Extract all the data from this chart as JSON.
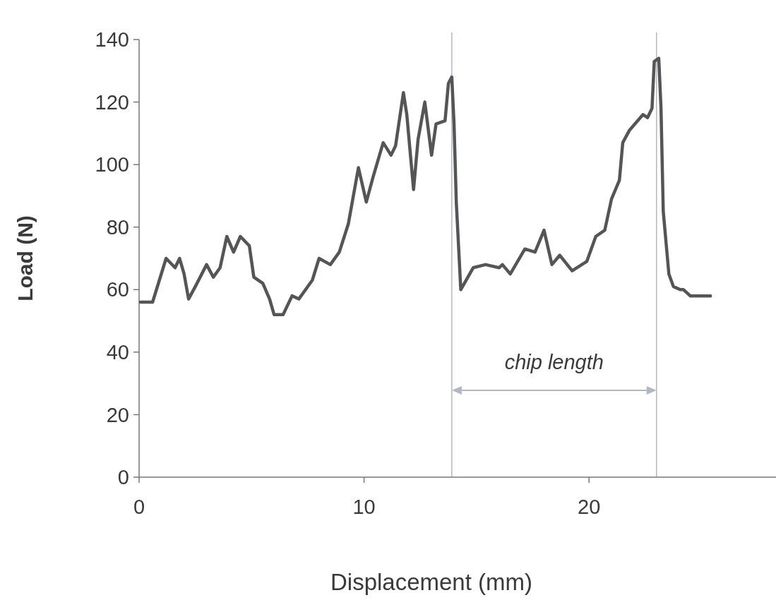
{
  "chart_data": {
    "type": "line",
    "xlabel": "Displacement (mm)",
    "ylabel": "Load (N)",
    "xlim": [
      0,
      28.5
    ],
    "ylim": [
      0,
      140
    ],
    "xticks": [
      0,
      10,
      20
    ],
    "yticks": [
      0,
      20,
      40,
      60,
      80,
      100,
      120,
      140
    ],
    "grid": false,
    "marker": "none",
    "line_style": "solid",
    "series": [
      {
        "color": "#555555",
        "x": [
          0.06,
          0.6,
          0.9,
          1.2,
          1.6,
          1.8,
          2.0,
          2.2,
          2.5,
          3.0,
          3.3,
          3.6,
          3.9,
          4.2,
          4.5,
          4.9,
          5.1,
          5.5,
          5.8,
          6.0,
          6.4,
          6.8,
          7.1,
          7.7,
          8.0,
          8.5,
          8.9,
          9.3,
          9.75,
          10.1,
          10.4,
          10.85,
          11.2,
          11.4,
          11.75,
          11.9,
          12.2,
          12.4,
          12.7,
          13.0,
          13.2,
          13.6,
          13.75,
          13.9,
          14.0,
          14.1,
          14.3,
          14.85,
          15.4,
          16.0,
          16.15,
          16.5,
          17.15,
          17.6,
          18.0,
          18.35,
          18.7,
          19.25,
          19.9,
          20.3,
          20.7,
          21.0,
          21.35,
          21.5,
          21.8,
          22.4,
          22.6,
          22.8,
          22.9,
          23.1,
          23.2,
          23.3,
          23.55,
          23.75,
          24.05,
          24.2,
          24.5,
          25.4
        ],
        "values": [
          56,
          56,
          63,
          70,
          67,
          70,
          65,
          57,
          61,
          68,
          64,
          67,
          77,
          72,
          77,
          74,
          64,
          62,
          57,
          52,
          52,
          58,
          57,
          63,
          70,
          68,
          72,
          81,
          99,
          88,
          96,
          107,
          103,
          106,
          123,
          116,
          92,
          108,
          120,
          103,
          113,
          114,
          126,
          128,
          113,
          88,
          60,
          67,
          68,
          67,
          68,
          65,
          73,
          72,
          79,
          68,
          71,
          66,
          69,
          77,
          79,
          89,
          95,
          107,
          111,
          116,
          115,
          118,
          133,
          134,
          118,
          85,
          65,
          61,
          60,
          60,
          58,
          58
        ]
      }
    ],
    "ref_lines": [
      {
        "axis": "x",
        "value": 13.9,
        "color": "#b0b8c4"
      },
      {
        "axis": "x",
        "value": 23.0,
        "color": "#b0b8c4"
      }
    ],
    "annotations": [
      "chip length"
    ]
  }
}
